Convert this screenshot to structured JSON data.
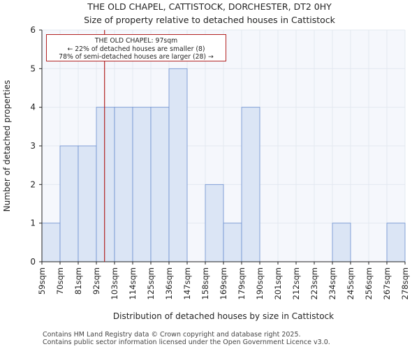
{
  "title_line1": "THE OLD CHAPEL, CATTISTOCK, DORCHESTER, DT2 0HY",
  "title_line2": "Size of property relative to detached houses in Cattistock",
  "footer_line1": "Contains HM Land Registry data © Crown copyright and database right 2025.",
  "footer_line2": "Contains public sector information licensed under the Open Government Licence v3.0.",
  "colors": {
    "bar_fill": "#dbe5f5",
    "bar_stroke": "#6b8fd0",
    "marker": "#b22222",
    "grid": "#e3e8f0"
  },
  "chart_data": {
    "type": "bar",
    "title": "Size of property relative to detached houses in Cattistock",
    "xlabel": "Distribution of detached houses by size in Cattistock",
    "ylabel": "Number of detached properties",
    "categories": [
      "59sqm",
      "70sqm",
      "81sqm",
      "92sqm",
      "103sqm",
      "114sqm",
      "125sqm",
      "136sqm",
      "147sqm",
      "158sqm",
      "169sqm",
      "179sqm",
      "190sqm",
      "201sqm",
      "212sqm",
      "223sqm",
      "234sqm",
      "245sqm",
      "256sqm",
      "267sqm",
      "278sqm"
    ],
    "values": [
      1,
      3,
      3,
      4,
      4,
      4,
      4,
      5,
      0,
      2,
      1,
      4,
      0,
      0,
      0,
      0,
      1,
      0,
      0,
      1,
      0
    ],
    "ylim": [
      0,
      6
    ],
    "yticks": [
      0,
      1,
      2,
      3,
      4,
      5,
      6
    ],
    "marker": {
      "value_sqm": 97,
      "position_bins": 3.45
    },
    "annotation": {
      "line1": "THE OLD CHAPEL: 97sqm",
      "line2": "← 22% of detached houses are smaller (8)",
      "line3": "78% of semi-detached houses are larger (28) →"
    }
  }
}
